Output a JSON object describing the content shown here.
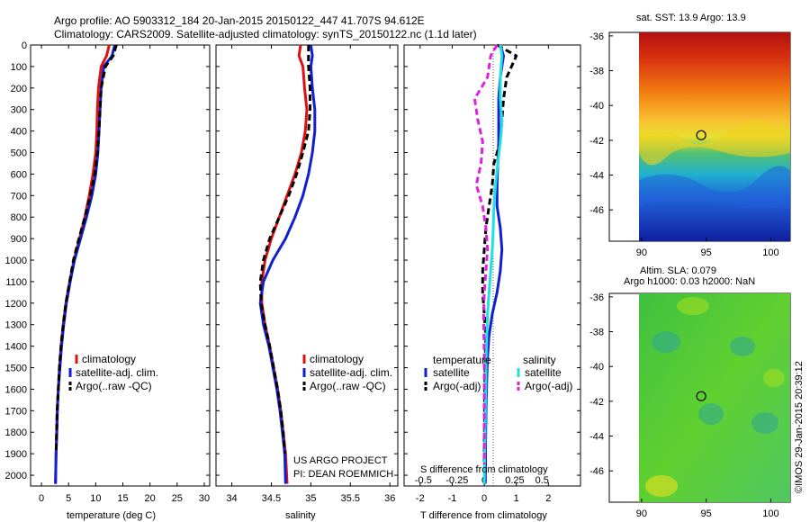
{
  "header": {
    "title_line1": "Argo profile: AO 5903312_184 20-Jan-2015 20150122_447 41.707S 94.612E",
    "title_line2": "Climatology: CARS2009. Satellite-adjusted climatology: synTS_20150122.nc (1.1d later)"
  },
  "colors": {
    "climatology": "#e01010",
    "satellite": "#1020d0",
    "argo": "#000000",
    "sal_satellite": "#20e0e0",
    "sal_argo": "#e020e0"
  },
  "chart_data": [
    {
      "type": "line",
      "name": "temperature-profile",
      "xlabel": "temperature (deg C)",
      "xlim": [
        -2,
        31
      ],
      "ylim": [
        2050,
        0
      ],
      "xticks": [
        0,
        5,
        10,
        15,
        20,
        25,
        30
      ],
      "yticks": [
        0,
        100,
        200,
        300,
        400,
        500,
        600,
        700,
        800,
        900,
        1000,
        1100,
        1200,
        1300,
        1400,
        1500,
        1600,
        1700,
        1800,
        1900,
        2000
      ],
      "legend": [
        "climatology",
        "satellite-adj. clim.",
        "Argo(..raw -QC)"
      ],
      "series": [
        {
          "name": "climatology",
          "style": "solid",
          "color_key": "climatology",
          "x": [
            12.5,
            12.0,
            11.0,
            10.5,
            10.3,
            10.2,
            10.0,
            9.5,
            8.8,
            8.0,
            7.0,
            6.0,
            5.2,
            4.5,
            4.0,
            3.6,
            3.3,
            3.1,
            2.9,
            2.8,
            2.7,
            2.6
          ],
          "y": [
            0,
            50,
            100,
            200,
            300,
            400,
            500,
            600,
            700,
            800,
            900,
            1000,
            1100,
            1200,
            1300,
            1400,
            1500,
            1600,
            1700,
            1800,
            1900,
            2040
          ]
        },
        {
          "name": "satellite",
          "style": "solid",
          "color_key": "satellite",
          "x": [
            13.5,
            13.0,
            11.5,
            11.0,
            10.8,
            10.6,
            10.4,
            10.0,
            9.3,
            8.3,
            7.2,
            6.1,
            5.3,
            4.6,
            4.1,
            3.7,
            3.4,
            3.1,
            2.95,
            2.85,
            2.7,
            2.6
          ],
          "y": [
            0,
            50,
            100,
            200,
            300,
            400,
            500,
            600,
            700,
            800,
            900,
            1000,
            1100,
            1200,
            1300,
            1400,
            1500,
            1600,
            1700,
            1800,
            1900,
            2040
          ]
        },
        {
          "name": "argo",
          "style": "dashed",
          "color_key": "argo",
          "x": [
            13.8,
            13.2,
            11.8,
            11.0,
            10.8,
            10.6,
            10.3,
            9.8,
            9.0,
            8.0,
            6.9,
            5.9,
            5.2,
            4.5,
            4.0,
            3.6,
            3.3,
            3.1,
            2.9,
            2.8,
            2.7
          ],
          "y": [
            0,
            50,
            100,
            200,
            300,
            400,
            500,
            600,
            700,
            800,
            900,
            1000,
            1100,
            1200,
            1300,
            1400,
            1500,
            1600,
            1700,
            1800,
            1900
          ]
        }
      ]
    },
    {
      "type": "line",
      "name": "salinity-profile",
      "xlabel": "salinity",
      "xlim": [
        33.8,
        36.1
      ],
      "ylim": [
        2050,
        0
      ],
      "xticks": [
        34,
        34.5,
        35,
        35.5,
        36
      ],
      "legend": [
        "climatology",
        "satellite-adj. clim.",
        "Argo(..raw -QC)"
      ],
      "annotation_line1": "US ARGO PROJECT",
      "annotation_line2": "PI: DEAN ROEMMICH",
      "series": [
        {
          "name": "climatology",
          "style": "solid",
          "color_key": "climatology",
          "x": [
            34.87,
            34.85,
            34.9,
            34.92,
            34.95,
            34.93,
            34.88,
            34.8,
            34.7,
            34.6,
            34.5,
            34.42,
            34.38,
            34.38,
            34.42,
            34.48,
            34.53,
            34.58,
            34.62,
            34.65,
            34.68,
            34.7
          ],
          "y": [
            0,
            50,
            100,
            200,
            300,
            400,
            500,
            600,
            700,
            800,
            900,
            1000,
            1100,
            1200,
            1300,
            1400,
            1500,
            1600,
            1700,
            1800,
            1900,
            2040
          ]
        },
        {
          "name": "satellite",
          "style": "solid",
          "color_key": "satellite",
          "x": [
            35.0,
            35.02,
            35.0,
            35.02,
            35.05,
            35.05,
            35.02,
            34.97,
            34.9,
            34.8,
            34.68,
            34.52,
            34.4,
            34.36,
            34.4,
            34.47,
            34.52,
            34.57,
            34.61,
            34.64,
            34.67,
            34.68
          ],
          "y": [
            0,
            50,
            100,
            200,
            300,
            400,
            500,
            600,
            700,
            800,
            900,
            1000,
            1100,
            1200,
            1300,
            1400,
            1500,
            1600,
            1700,
            1800,
            1900,
            2040
          ]
        },
        {
          "name": "argo",
          "style": "dashed",
          "color_key": "argo",
          "x": [
            34.97,
            34.97,
            34.97,
            34.99,
            34.99,
            34.97,
            34.9,
            34.82,
            34.72,
            34.6,
            34.48,
            34.4,
            34.36,
            34.37,
            34.42,
            34.48,
            34.53,
            34.58,
            34.62,
            34.65,
            34.67
          ],
          "y": [
            0,
            50,
            100,
            200,
            300,
            400,
            500,
            600,
            700,
            800,
            900,
            1000,
            1100,
            1200,
            1300,
            1400,
            1500,
            1600,
            1700,
            1800,
            1900
          ]
        }
      ]
    },
    {
      "type": "line",
      "name": "difference-profile",
      "xlabel": "T difference from climatology",
      "top_label": "S difference from climatology",
      "xlim": [
        -2.5,
        3
      ],
      "ylim": [
        2050,
        0
      ],
      "xticks": [
        -2,
        -1,
        0,
        1,
        2
      ],
      "sticks_labels": [
        "-0.5",
        "-0.25",
        "0",
        "0.25",
        "0.5"
      ],
      "sticks_pos": [
        -1.9,
        -0.85,
        0,
        0.95,
        1.8
      ],
      "legend_temperature_title": "temperature",
      "legend_salinity_title": "salinity",
      "legend": [
        "satellite",
        "Argo(-adj)",
        "satellite",
        "Argo(-adj)"
      ],
      "series": [
        {
          "name": "T satellite",
          "style": "solid",
          "color_key": "satellite",
          "x": [
            0.5,
            0.6,
            0.5,
            0.45,
            0.45,
            0.45,
            0.42,
            0.4,
            0.4,
            0.5,
            0.55,
            0.5,
            0.4,
            0.25,
            0.15,
            0.1,
            0.08,
            0.06,
            0.05,
            0.04,
            0.04,
            0.03
          ],
          "y": [
            0,
            50,
            150,
            250,
            350,
            450,
            550,
            650,
            750,
            850,
            950,
            1050,
            1150,
            1250,
            1350,
            1450,
            1550,
            1650,
            1750,
            1850,
            1950,
            2040
          ]
        },
        {
          "name": "T argo",
          "style": "dashed",
          "color_key": "argo",
          "x": [
            0.4,
            1.0,
            0.7,
            0.6,
            0.55,
            0.5,
            0.3,
            0.25,
            0.15,
            0.05,
            0.0,
            -0.05,
            -0.05,
            0.0,
            0.05,
            0.03,
            0.02,
            0.01,
            0.01,
            0.0,
            0.0
          ],
          "y": [
            0,
            50,
            150,
            250,
            350,
            450,
            550,
            650,
            750,
            850,
            950,
            1050,
            1150,
            1250,
            1350,
            1450,
            1550,
            1650,
            1750,
            1850,
            1950
          ]
        },
        {
          "name": "S satellite",
          "style": "solid",
          "color_key": "sal_satellite",
          "x": [
            0.5,
            0.55,
            0.5,
            0.5,
            0.55,
            0.5,
            0.42,
            0.35,
            0.3,
            0.28,
            0.25,
            0.2,
            0.15,
            0.1,
            0.08,
            0.06,
            0.05,
            0.04,
            0.03,
            0.02,
            0.01,
            0.0
          ],
          "y": [
            0,
            50,
            150,
            250,
            350,
            450,
            550,
            650,
            750,
            850,
            950,
            1050,
            1150,
            1250,
            1350,
            1450,
            1550,
            1650,
            1750,
            1850,
            1950,
            2040
          ]
        },
        {
          "name": "S argo",
          "style": "dashed",
          "color_key": "sal_argo",
          "x": [
            0.4,
            0.2,
            0.1,
            -0.3,
            -0.2,
            -0.05,
            -0.1,
            -0.25,
            -0.05,
            0.05,
            0.1,
            0.05,
            0.0,
            -0.02,
            -0.01,
            0.0,
            0.0,
            0.0,
            0.0,
            0.0,
            0.0
          ],
          "y": [
            0,
            50,
            150,
            250,
            350,
            450,
            550,
            650,
            750,
            850,
            950,
            1050,
            1150,
            1250,
            1350,
            1450,
            1550,
            1650,
            1750,
            1850,
            1950
          ]
        }
      ]
    },
    {
      "type": "heatmap",
      "name": "sst-map",
      "title": "sat. SST: 13.9 Argo: 13.9",
      "xlim": [
        87.5,
        101.5
      ],
      "ylim": [
        -47.8,
        -35.8
      ],
      "xticks": [
        90,
        95,
        100
      ],
      "yticks": [
        -36,
        -38,
        -40,
        -42,
        -44,
        -46
      ],
      "marker": {
        "lon": 94.612,
        "lat": -41.707
      }
    },
    {
      "type": "heatmap",
      "name": "sla-map",
      "title_line1": "Altim. SLA: 0.079",
      "title_line2": "Argo h1000: 0.03 h2000: NaN",
      "xlim": [
        87.5,
        101.5
      ],
      "ylim": [
        -47.8,
        -35.8
      ],
      "xticks": [
        90,
        95,
        100
      ],
      "yticks": [
        -36,
        -38,
        -40,
        -42,
        -44,
        -46
      ],
      "marker": {
        "lon": 94.612,
        "lat": -41.707
      }
    }
  ],
  "credit": "©IMOS 29-Jan-2015 20:39:12"
}
